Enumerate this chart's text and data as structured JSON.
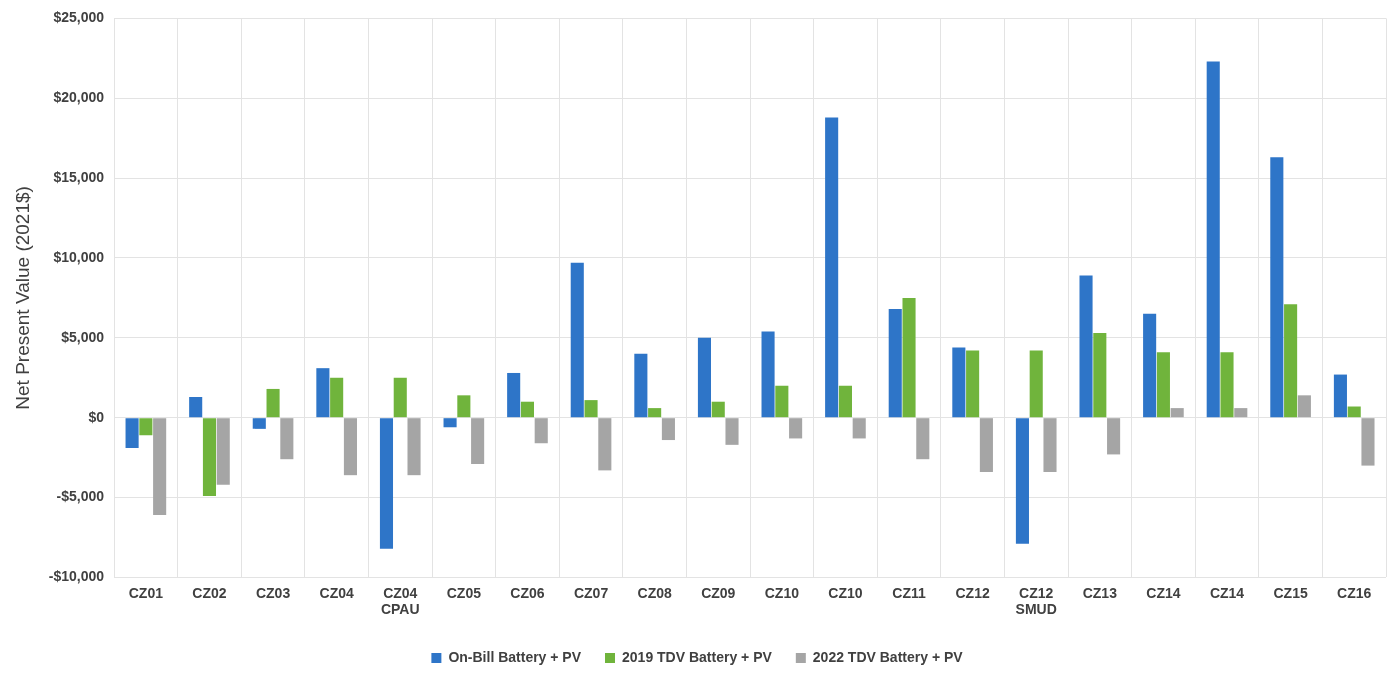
{
  "chart_data": {
    "type": "bar",
    "ylabel": "Net Present Value (2021$)",
    "categories": [
      "CZ01",
      "CZ02",
      "CZ03",
      "CZ04",
      "CZ04 CPAU",
      "CZ05",
      "CZ06",
      "CZ07",
      "CZ08",
      "CZ09",
      "CZ10",
      "CZ10",
      "CZ11",
      "CZ12",
      "CZ12 SMUD",
      "CZ13",
      "CZ14",
      "CZ14",
      "CZ15",
      "CZ16"
    ],
    "series": [
      {
        "name": "On-Bill Battery + PV",
        "color": "#2e75c8",
        "values": [
          -1900,
          1300,
          -700,
          3100,
          -8200,
          -600,
          2800,
          9700,
          4000,
          5000,
          5400,
          18800,
          6800,
          4400,
          -7900,
          8900,
          6500,
          22300,
          16300,
          2700
        ]
      },
      {
        "name": "2019 TDV Battery + PV",
        "color": "#70b43c",
        "values": [
          -1100,
          -4900,
          1800,
          2500,
          2500,
          1400,
          1000,
          1100,
          600,
          1000,
          2000,
          2000,
          7500,
          4200,
          4200,
          5300,
          4100,
          4100,
          7100,
          700
        ]
      },
      {
        "name": "2022 TDV Battery + PV",
        "color": "#a5a5a5",
        "values": [
          -6100,
          -4200,
          -2600,
          -3600,
          -3600,
          -2900,
          -1600,
          -3300,
          -1400,
          -1700,
          -1300,
          -1300,
          -2600,
          -3400,
          -3400,
          -2300,
          600,
          600,
          1400,
          -3000
        ]
      }
    ],
    "ylim": [
      -10000,
      25000
    ],
    "yticks": [
      {
        "value": -10000,
        "label": "-$10,000"
      },
      {
        "value": -5000,
        "label": "-$5,000"
      },
      {
        "value": 0,
        "label": "$0"
      },
      {
        "value": 5000,
        "label": "$5,000"
      },
      {
        "value": 10000,
        "label": "$10,000"
      },
      {
        "value": 15000,
        "label": "$15,000"
      },
      {
        "value": 20000,
        "label": "$20,000"
      },
      {
        "value": 25000,
        "label": "$25,000"
      }
    ],
    "grid": true,
    "legend": "bottom"
  }
}
